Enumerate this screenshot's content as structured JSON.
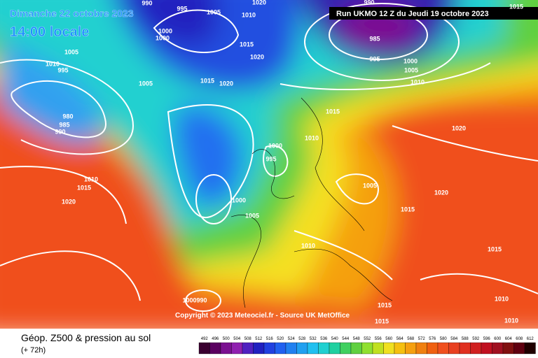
{
  "header": {
    "date": "Dimanche 22 octobre 2023",
    "time": "14:00 locale",
    "run": "Run UKMO 12 Z du Jeudi 19 octobre 2023"
  },
  "copyright": "Copyright © 2023 Meteociel.fr - Source UK MetOffice",
  "footer": {
    "title": "Géop. Z500 & pression au sol",
    "lead": "(+ 72h)"
  },
  "scale": {
    "values": [
      492,
      496,
      500,
      504,
      508,
      512,
      516,
      520,
      524,
      528,
      532,
      536,
      540,
      544,
      548,
      552,
      556,
      560,
      564,
      568,
      572,
      576,
      580,
      584,
      588,
      592,
      596,
      600,
      604,
      608,
      612
    ]
  },
  "isobars": {
    "labels": [
      "990",
      "995",
      "1005",
      "1020",
      "1010",
      "1000",
      "1000",
      "1005",
      "1010",
      "995",
      "1005",
      "1015",
      "1020",
      "1015",
      "1020",
      "980",
      "985",
      "990",
      "1010",
      "1015",
      "1020",
      "1000",
      "995",
      "1010",
      "1015",
      "1000",
      "1005",
      "1005",
      "1020",
      "1015",
      "1010",
      "1015",
      "1010",
      "1015",
      "1015",
      "1010",
      "1000990",
      "1020",
      "985",
      "990",
      "995",
      "1000",
      "1005",
      "1010",
      "1015"
    ]
  }
}
